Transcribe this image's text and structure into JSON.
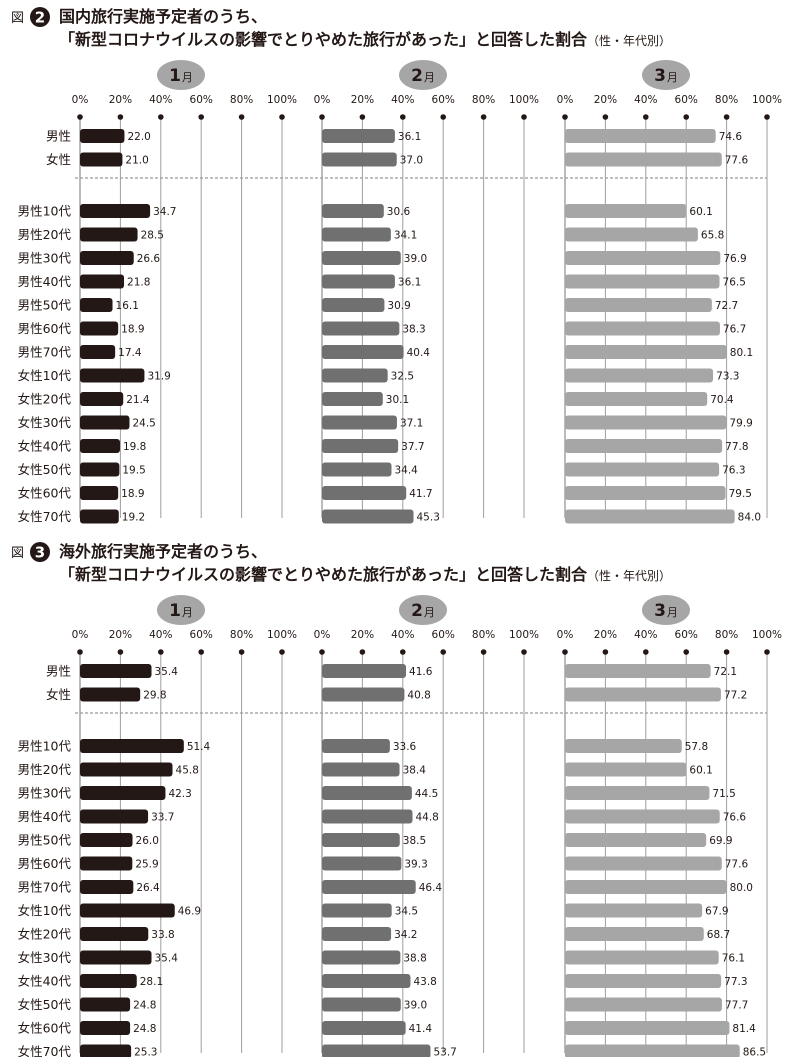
{
  "chart_data": [
    {
      "type": "bar",
      "figure_label": "図",
      "figure_number": "2",
      "title_line1": "国内旅行実施予定者のうち、",
      "title_line2": "「新型コロナウイルスの影響でとりやめた旅行があった」と回答した割合",
      "title_suffix": "（性・年代別）",
      "categories": [
        "男性",
        "女性",
        "男性10代",
        "男性20代",
        "男性30代",
        "男性40代",
        "男性50代",
        "男性60代",
        "男性70代",
        "女性10代",
        "女性20代",
        "女性30代",
        "女性40代",
        "女性50代",
        "女性60代",
        "女性70代"
      ],
      "xlim": [
        0,
        100
      ],
      "x_ticks": [
        "0%",
        "20%",
        "40%",
        "60%",
        "80%",
        "100%"
      ],
      "grid": true,
      "series": [
        {
          "name": "1",
          "unit": "月",
          "color": "#231815",
          "values": [
            22.0,
            21.0,
            34.7,
            28.5,
            26.6,
            21.8,
            16.1,
            18.9,
            17.4,
            31.9,
            21.4,
            24.5,
            19.8,
            19.5,
            18.9,
            19.2
          ],
          "labels": [
            "22.0",
            "21.0",
            "34.7",
            "28.5",
            "26.6",
            "21.8",
            "16.1",
            "18.9",
            "17.4",
            "31.9",
            "21.4",
            "24.5",
            "19.8",
            "19.5",
            "18.9",
            "19.2"
          ]
        },
        {
          "name": "2",
          "unit": "月",
          "color": "#717071",
          "values": [
            36.1,
            37.0,
            30.6,
            34.1,
            39.0,
            36.1,
            30.9,
            38.3,
            40.4,
            32.5,
            30.1,
            37.1,
            37.7,
            34.4,
            41.7,
            45.3
          ],
          "labels": [
            "36.1",
            "37.0",
            "30.6",
            "34.1",
            "39.0",
            "36.1",
            "30.9",
            "38.3",
            "40.4",
            "32.5",
            "30.1",
            "37.1",
            "37.7",
            "34.4",
            "41.7",
            "45.3"
          ]
        },
        {
          "name": "3",
          "unit": "月",
          "color": "#a7a6a6",
          "values": [
            74.6,
            77.6,
            60.1,
            65.8,
            76.9,
            76.5,
            72.7,
            76.7,
            80.1,
            73.3,
            70.4,
            79.9,
            77.8,
            76.3,
            79.5,
            84.0
          ],
          "labels": [
            "74.6",
            "77.6",
            "60.1",
            "65.8",
            "76.9",
            "76.5",
            "72.7",
            "76.7",
            "80.1",
            "73.3",
            "70.4",
            "79.9",
            "77.8",
            "76.3",
            "79.5",
            "84.0"
          ]
        }
      ]
    },
    {
      "type": "bar",
      "figure_label": "図",
      "figure_number": "3",
      "title_line1": "海外旅行実施予定者のうち、",
      "title_line2": "「新型コロナウイルスの影響でとりやめた旅行があった」と回答した割合",
      "title_suffix": "（性・年代別）",
      "categories": [
        "男性",
        "女性",
        "男性10代",
        "男性20代",
        "男性30代",
        "男性40代",
        "男性50代",
        "男性60代",
        "男性70代",
        "女性10代",
        "女性20代",
        "女性30代",
        "女性40代",
        "女性50代",
        "女性60代",
        "女性70代"
      ],
      "xlim": [
        0,
        100
      ],
      "x_ticks": [
        "0%",
        "20%",
        "40%",
        "60%",
        "80%",
        "100%"
      ],
      "grid": true,
      "series": [
        {
          "name": "1",
          "unit": "月",
          "color": "#231815",
          "values": [
            35.4,
            29.8,
            51.4,
            45.8,
            42.3,
            33.7,
            26.0,
            25.9,
            26.4,
            46.9,
            33.8,
            35.4,
            28.1,
            24.8,
            24.8,
            25.3
          ],
          "labels": [
            "35.4",
            "29.8",
            "51.4",
            "45.8",
            "42.3",
            "33.7",
            "26.0",
            "25.9",
            "26.4",
            "46.9",
            "33.8",
            "35.4",
            "28.1",
            "24.8",
            "24.8",
            "25.3"
          ]
        },
        {
          "name": "2",
          "unit": "月",
          "color": "#717071",
          "values": [
            41.6,
            40.8,
            33.6,
            38.4,
            44.5,
            44.8,
            38.5,
            39.3,
            46.4,
            34.5,
            34.2,
            38.8,
            43.8,
            39.0,
            41.4,
            53.7
          ],
          "labels": [
            "41.6",
            "40.8",
            "33.6",
            "38.4",
            "44.5",
            "44.8",
            "38.5",
            "39.3",
            "46.4",
            "34.5",
            "34.2",
            "38.8",
            "43.8",
            "39.0",
            "41.4",
            "53.7"
          ]
        },
        {
          "name": "3",
          "unit": "月",
          "color": "#a7a6a6",
          "values": [
            72.1,
            77.2,
            57.8,
            60.1,
            71.5,
            76.6,
            69.9,
            77.6,
            80.0,
            67.9,
            68.7,
            76.1,
            77.3,
            77.7,
            81.4,
            86.5
          ],
          "labels": [
            "72.1",
            "77.2",
            "57.8",
            "60.1",
            "71.5",
            "76.6",
            "69.9",
            "77.6",
            "80.0",
            "67.9",
            "68.7",
            "76.1",
            "77.3",
            "77.7",
            "81.4",
            "86.5"
          ]
        }
      ]
    }
  ]
}
